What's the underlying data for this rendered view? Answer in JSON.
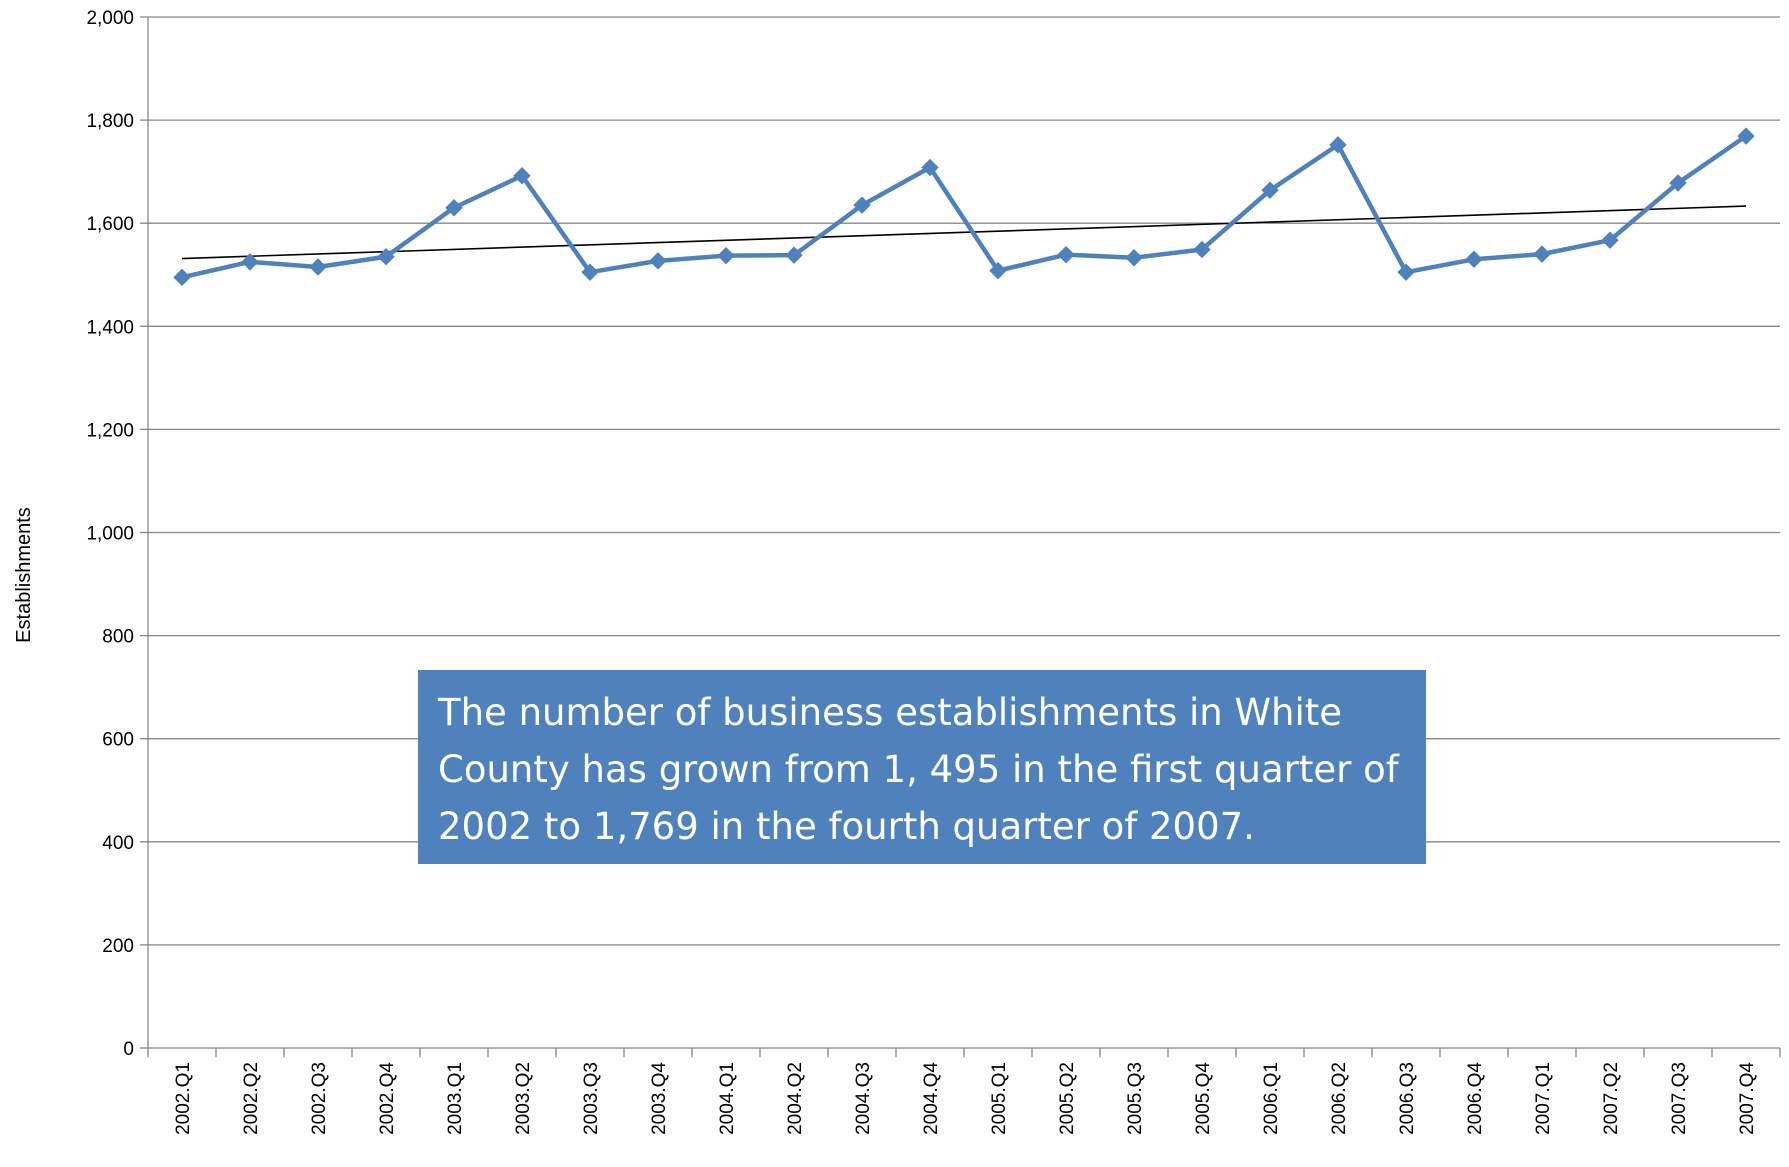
{
  "chart_data": {
    "type": "line",
    "title": "",
    "xlabel": "",
    "ylabel": "Establishments",
    "ylim": [
      0,
      2000
    ],
    "yticks": [
      0,
      200,
      400,
      600,
      800,
      1000,
      1200,
      1400,
      1600,
      1800,
      2000
    ],
    "ytick_labels": [
      "0",
      "200",
      "400",
      "600",
      "800",
      "1,000",
      "1,200",
      "1,400",
      "1,600",
      "1,800",
      "2,000"
    ],
    "categories": [
      "2002.Q1",
      "2002.Q2",
      "2002.Q3",
      "2002.Q4",
      "2003.Q1",
      "2003.Q2",
      "2003.Q3",
      "2003.Q4",
      "2004.Q1",
      "2004.Q2",
      "2004.Q3",
      "2004.Q4",
      "2005.Q1",
      "2005.Q2",
      "2005.Q3",
      "2005.Q4",
      "2006.Q1",
      "2006.Q2",
      "2006.Q3",
      "2006.Q4",
      "2007.Q1",
      "2007.Q2",
      "2007.Q3",
      "2007.Q4"
    ],
    "series": [
      {
        "values": [
          1495,
          1525,
          1515,
          1535,
          1630,
          1692,
          1505,
          1527,
          1537,
          1538,
          1635,
          1708,
          1508,
          1539,
          1533,
          1549,
          1664,
          1752,
          1505,
          1530,
          1540,
          1567,
          1678,
          1769
        ],
        "color": "#4f81bd",
        "marker": "diamond"
      }
    ],
    "trendline": {
      "type": "linear",
      "color": "#000000"
    },
    "grid": true,
    "annotation": "The number of business establishments in White County has grown from  1, 495 in the first quarter of 2002 to 1,769 in the fourth quarter of 2007."
  }
}
